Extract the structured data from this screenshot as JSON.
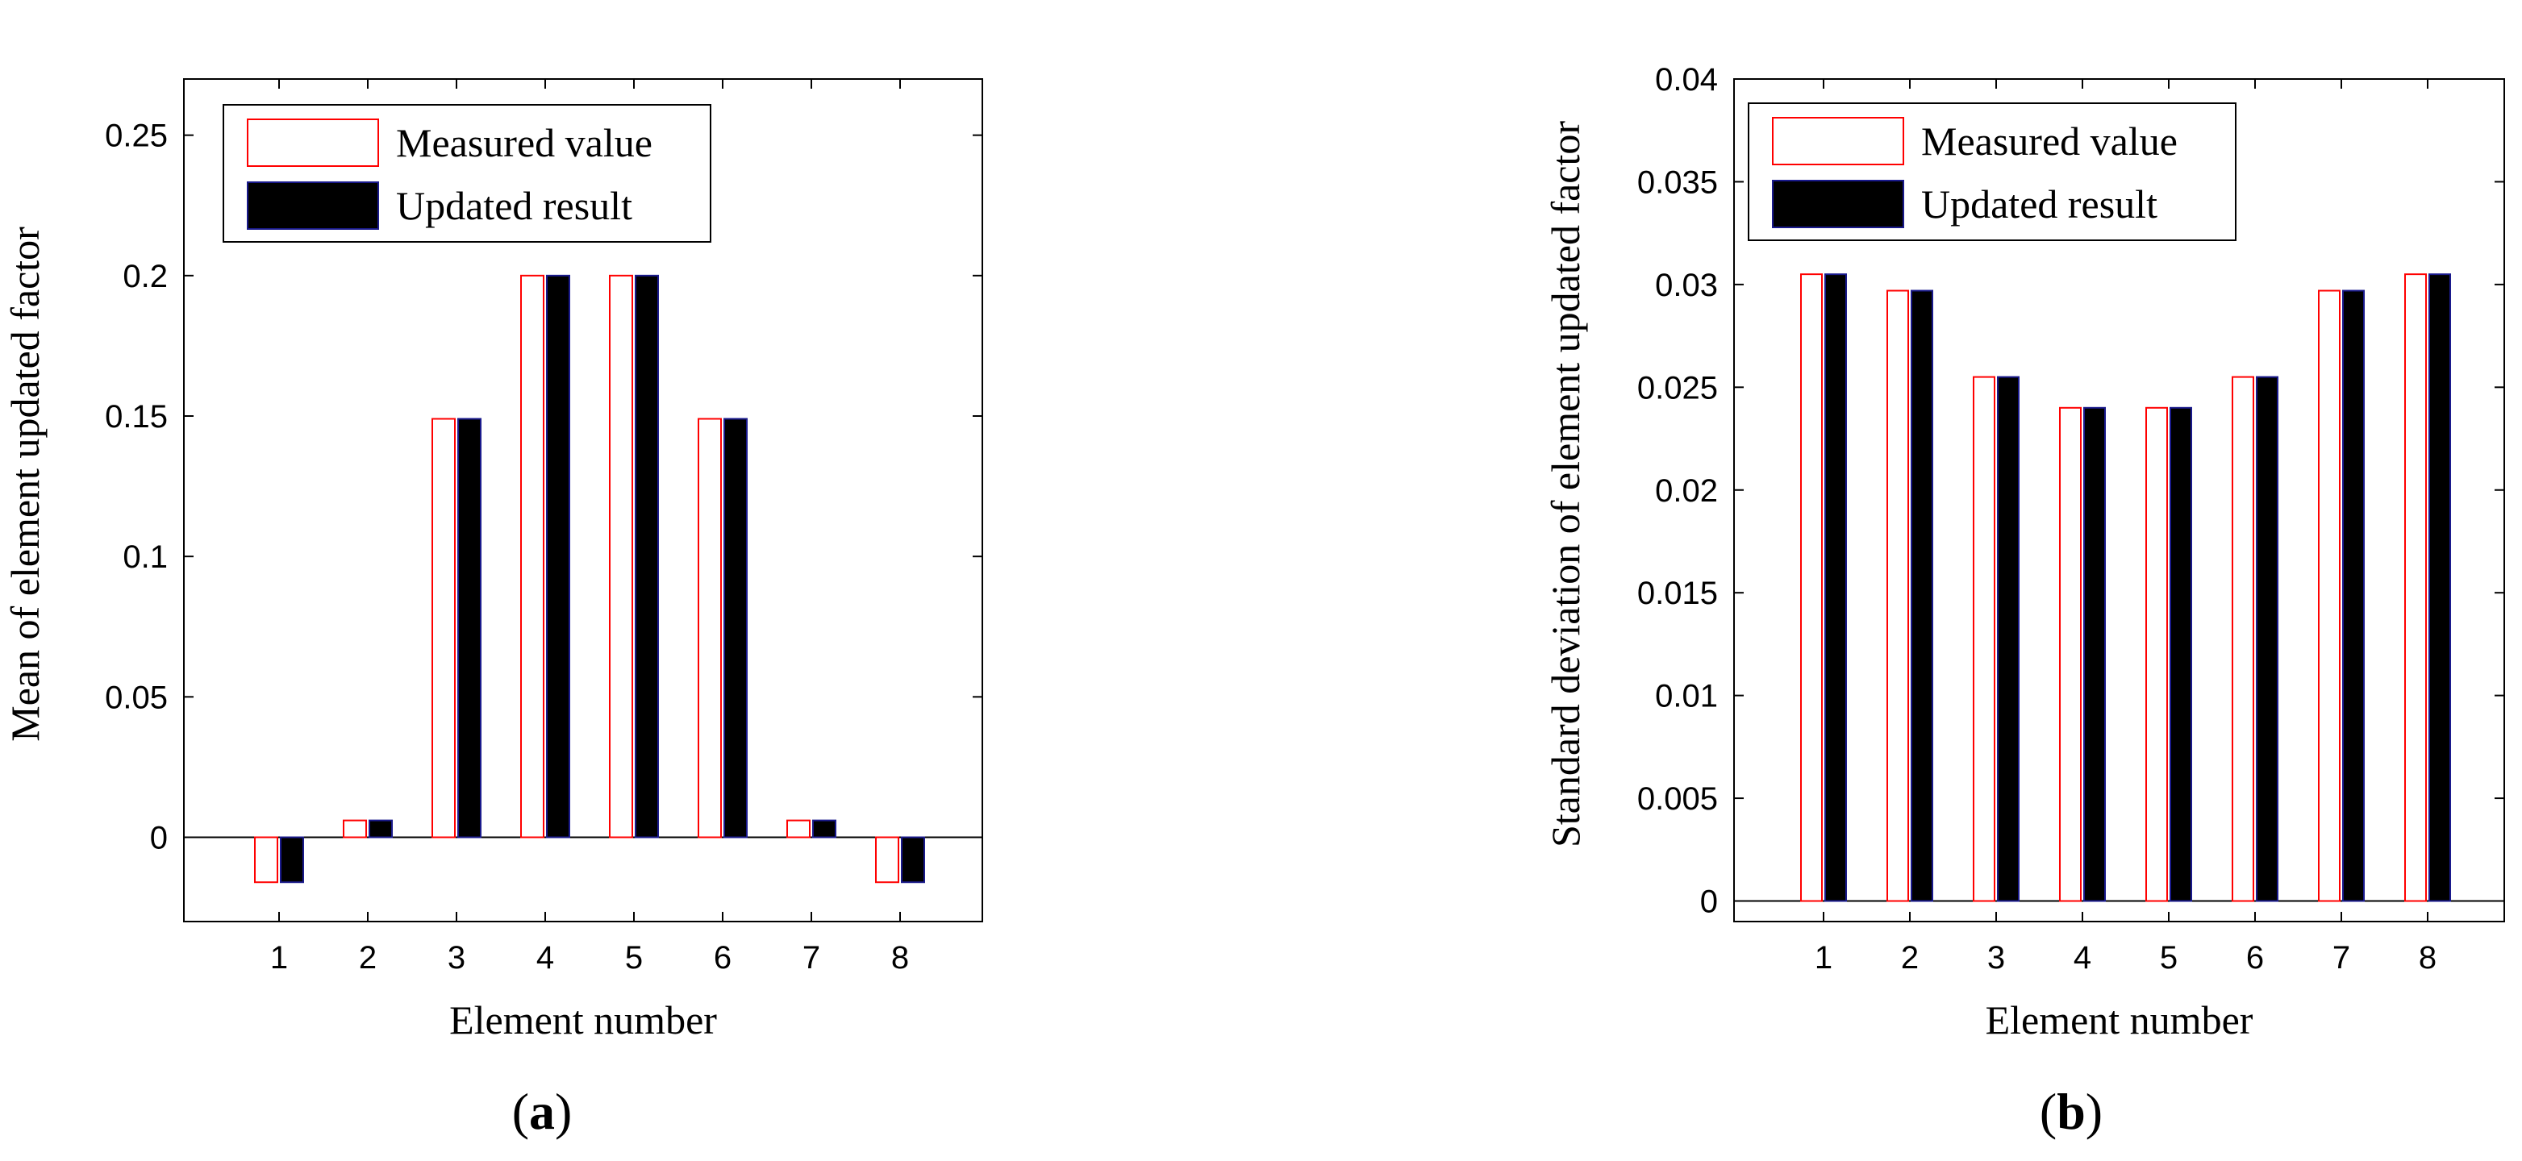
{
  "chart_data": [
    {
      "type": "bar",
      "panel_label": "a",
      "xlabel": "Element number",
      "ylabel": "Mean of element updated factor",
      "categories": [
        "1",
        "2",
        "3",
        "4",
        "5",
        "6",
        "7",
        "8"
      ],
      "ylim": [
        -0.03,
        0.27
      ],
      "yticks": [
        "0",
        "0.05",
        "0.1",
        "0.15",
        "0.2",
        "0.25"
      ],
      "legend_position": "top-left",
      "zero_line": true,
      "series": [
        {
          "name": "Measured value",
          "color": "#ff0000",
          "fill": "none",
          "values": [
            -0.016,
            0.006,
            0.149,
            0.2,
            0.2,
            0.149,
            0.006,
            -0.016
          ]
        },
        {
          "name": "Updated result",
          "color": "#000000",
          "fill": "#000000",
          "values": [
            -0.016,
            0.006,
            0.149,
            0.2,
            0.2,
            0.149,
            0.006,
            -0.016
          ]
        }
      ]
    },
    {
      "type": "bar",
      "panel_label": "b",
      "xlabel": "Element number",
      "ylabel": "Standard deviation of element updated factor",
      "categories": [
        "1",
        "2",
        "3",
        "4",
        "5",
        "6",
        "7",
        "8"
      ],
      "ylim": [
        -0.001,
        0.04
      ],
      "yticks": [
        "0",
        "0.005",
        "0.01",
        "0.015",
        "0.02",
        "0.025",
        "0.03",
        "0.035",
        "0.04"
      ],
      "legend_position": "top-left",
      "zero_line": true,
      "series": [
        {
          "name": "Measured value",
          "color": "#ff0000",
          "fill": "none",
          "values": [
            0.0305,
            0.0297,
            0.0255,
            0.024,
            0.024,
            0.0255,
            0.0297,
            0.0305
          ]
        },
        {
          "name": "Updated result",
          "color": "#000000",
          "fill": "#000000",
          "values": [
            0.0305,
            0.0297,
            0.0255,
            0.024,
            0.024,
            0.0255,
            0.0297,
            0.0305
          ]
        }
      ]
    }
  ]
}
